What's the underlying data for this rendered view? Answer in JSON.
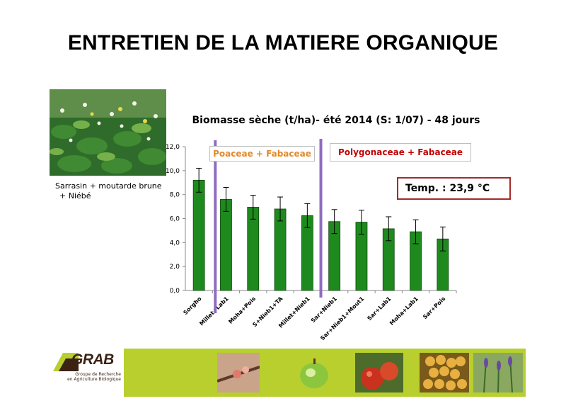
{
  "slide": {
    "title": "ENTRETIEN DE LA MATIERE ORGANIQUE",
    "photo_caption_line1": "Sarrasin + moutarde brune",
    "photo_caption_line2": "+ Niébé"
  },
  "annotations": {
    "group1": "Poaceae + Fabaceae",
    "group2": "Polygonaceae  + Fabaceae",
    "temperature": "Temp. : 23,9 °C"
  },
  "footer": {
    "logo_word": "GRAB",
    "logo_line1": "Groupe de Recherche",
    "logo_line2": "en Agriculture Biologique"
  },
  "colors": {
    "bar": "#1e8a1e",
    "separator": "#8e6cc0",
    "footer_band": "#b8cf2e",
    "temp_border": "#a52a2a"
  },
  "chart_data": {
    "type": "bar",
    "title": "Biomasse sèche (t/ha)- été 2014 (S: 1/07) - 48 jours",
    "categories": [
      "Sorgho",
      "Millet+Lab1",
      "Moha+Pois",
      "S+Nieb1+TA",
      "Millet+Nieb1",
      "Sar+Nieb1",
      "Sar+Nieb1+Mout1",
      "Sar+Lab1",
      "Moha+Lab1",
      "Sar+Pois"
    ],
    "values": [
      9.2,
      7.6,
      6.95,
      6.8,
      6.25,
      5.75,
      5.7,
      5.15,
      4.9,
      4.3
    ],
    "error": [
      1.0,
      1.0,
      1.0,
      1.0,
      1.0,
      1.0,
      1.0,
      1.0,
      1.0,
      1.0
    ],
    "ylim": [
      0,
      12
    ],
    "yticks": [
      "0,0",
      "2,0",
      "4,0",
      "6,0",
      "8,0",
      "10,0",
      "12,0"
    ],
    "xlabel": "",
    "ylabel": "",
    "grid": false
  }
}
